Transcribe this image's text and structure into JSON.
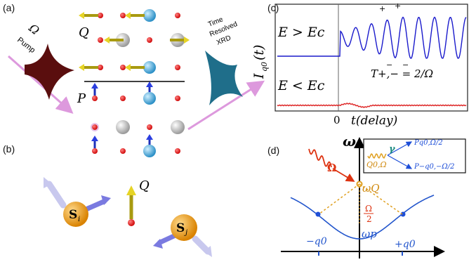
{
  "panels": {
    "a": "(a)",
    "b": "(b)",
    "c": "(c)",
    "d": "(d)"
  },
  "panel_a": {
    "pump_omega": "Ω",
    "pump_label": "Pump",
    "Q_label": "Q",
    "P_label": "P",
    "xrd_line1": "Time",
    "xrd_line2": "Resolved",
    "xrd_line3": "XRD"
  },
  "panel_b": {
    "Q_label": "Q",
    "Si_base": "S",
    "Si_sub": "i",
    "Sj_base": "S",
    "Sj_sub": "j"
  },
  "panel_c": {
    "ylabel_base": "I",
    "ylabel_sub": "q0",
    "ylabel_arg": "(t)",
    "cond_upper": "E > Ec",
    "cond_lower": "E < Ec",
    "period_label": "T+,− = 2/Ω",
    "plus_marks": [
      "+",
      "+"
    ],
    "minus_marks": [
      "−",
      "−"
    ],
    "x_zero": "0",
    "xlabel": "t(delay)"
  },
  "panel_d": {
    "y_axis": "ω",
    "omega_drive": "Ω",
    "omega_Q": "ωQ",
    "omega_p": "ωp",
    "half_num": "Ω",
    "half_den": "2",
    "neg_q0": "−q0",
    "pos_q0": "+q0",
    "gamma": "γ",
    "inset_Q": "Q0,Ω",
    "inset_P_top": "Pq0,Ω/2",
    "inset_P_bottom": "P−q0,−Ω/2"
  },
  "colors": {
    "blue_trace": "#1a1acc",
    "red_trace": "#dd2222",
    "pump_arrow": "#dd99dd",
    "dispersion": "#2255cc",
    "dashed_orange": "#e0a020",
    "drive_red": "#dd3311"
  }
}
